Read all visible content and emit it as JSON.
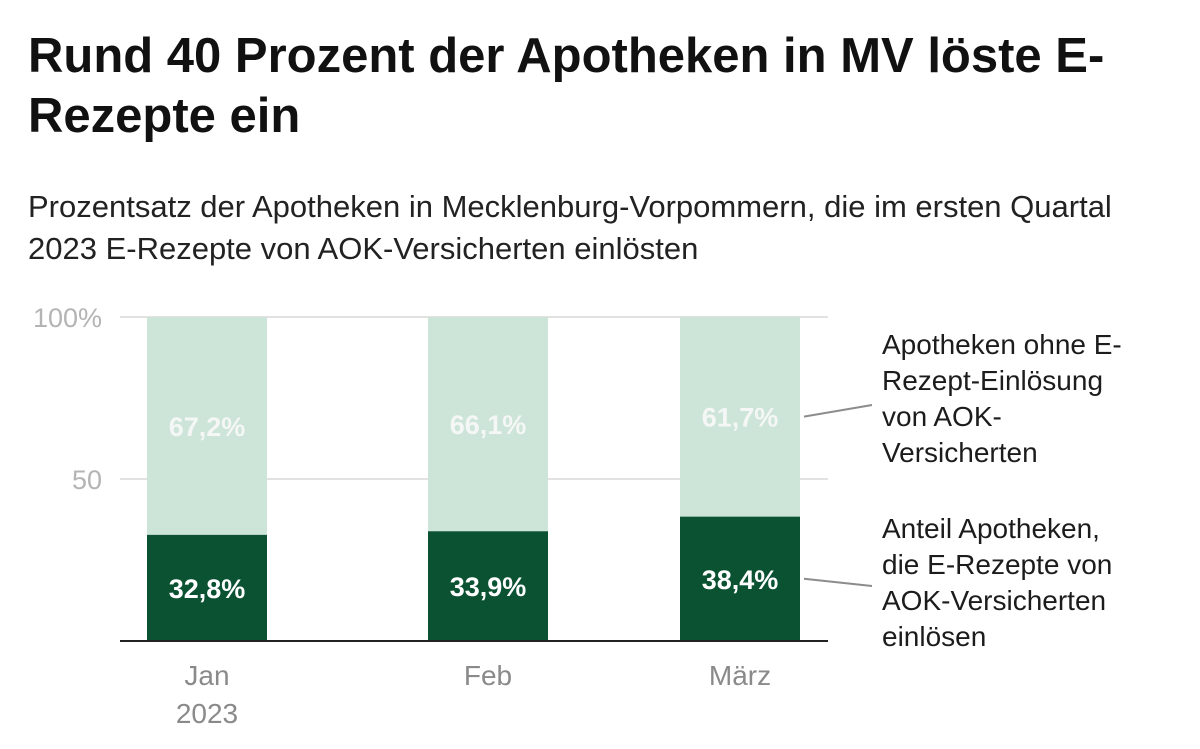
{
  "title": "Rund 40 Prozent der Apotheken in MV löste E-Rezepte ein",
  "subtitle": "Prozentsatz der Apotheken in Mecklenburg-Vorpommern, die im ersten Quartal 2023 E-Rezepte von AOK-Versicherten einlösten",
  "chart_data": {
    "type": "bar",
    "stacked": true,
    "categories": [
      [
        "Jan",
        "2023"
      ],
      [
        "Feb"
      ],
      [
        "März"
      ]
    ],
    "series": [
      {
        "name": "Anteil Apotheken, die E-Rezepte von AOK-Versicherten einlösen",
        "legend_lines": [
          "Anteil Apotheken,",
          "die E-Rezepte von",
          "AOK-Versicherten",
          "einlösen"
        ],
        "values": [
          32.8,
          33.9,
          38.4
        ],
        "labels": [
          "32,8%",
          "33,9%",
          "38,4%"
        ],
        "color": "#0b5233",
        "label_color": "#ffffff"
      },
      {
        "name": "Apotheken ohne E-Rezept-Einlösung von AOK-Versicherten",
        "legend_lines": [
          "Apotheken ohne E-",
          "Rezept-Einlösung",
          "von AOK-",
          "Versicherten"
        ],
        "values": [
          67.2,
          66.1,
          61.7
        ],
        "labels": [
          "67,2%",
          "66,1%",
          "61,7%"
        ],
        "color": "#cde4d8",
        "label_color": "#f4f7f5"
      }
    ],
    "ylim": [
      0,
      100
    ],
    "yticks": [
      {
        "value": 50,
        "label": "50"
      },
      {
        "value": 100,
        "label": "100%"
      }
    ],
    "legend_position": "right",
    "grid": true,
    "grid_color": "#e2e2e2",
    "axis_color": "#222222"
  }
}
